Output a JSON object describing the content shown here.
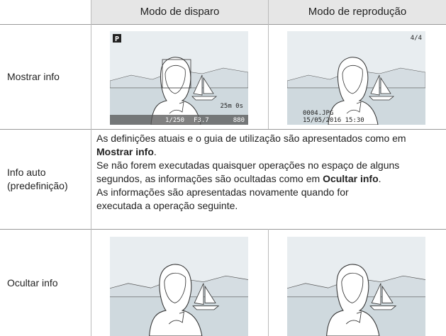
{
  "table": {
    "header": [
      "Modo de disparo",
      "Modo de reprodução"
    ],
    "rows": [
      {
        "label": "Mostrar info",
        "shoot_osd": {
          "mode": "P",
          "remaining": "25m 0s",
          "shutter": "1/250",
          "aperture": "F3.7",
          "shots": "880"
        },
        "play_osd": {
          "counter": "4/4",
          "file": "0004.JPG",
          "date": "15/05/2016 15:30"
        }
      },
      {
        "label": "Info auto (predefinição)",
        "paragraphs": [
          {
            "text": "As definições atuais e o guia de utilização são apresentados como em ",
            "em": "Mostrar info",
            "end": "."
          },
          {
            "text": "Se não forem executadas quaisquer operações no espaço de alguns segundos, as informações são ocultadas como em ",
            "em": "Ocultar info",
            "end": "."
          },
          {
            "text": "As informações são apresentadas novamente quando for executada a operação seguinte."
          }
        ]
      },
      {
        "label": "Ocultar info"
      }
    ]
  }
}
